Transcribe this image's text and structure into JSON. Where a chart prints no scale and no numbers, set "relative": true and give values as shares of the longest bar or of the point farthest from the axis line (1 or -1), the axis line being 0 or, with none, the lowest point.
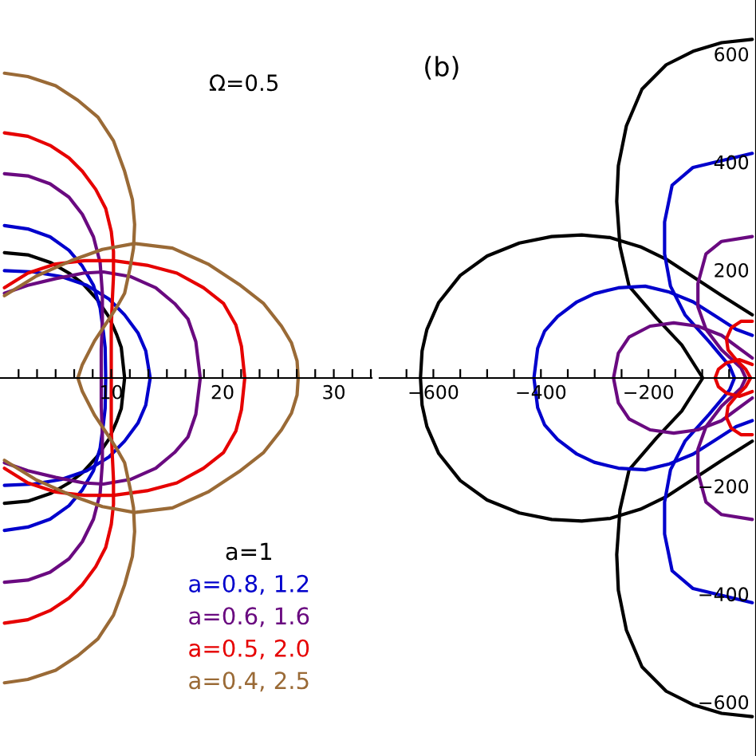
{
  "chart_data": [
    {
      "type": "line",
      "relative": true,
      "xlim": [
        0,
        33.4
      ],
      "xticks": [
        {
          "value": 1.67,
          "label": null
        },
        {
          "value": 3.33,
          "label": null
        },
        {
          "value": 5,
          "label": null
        },
        {
          "value": 6.67,
          "label": null
        },
        {
          "value": 8.33,
          "label": null
        },
        10,
        {
          "value": 11.67,
          "label": null
        },
        {
          "value": 13.33,
          "label": null
        },
        {
          "value": 15,
          "label": null
        },
        {
          "value": 16.67,
          "label": null
        },
        {
          "value": 18.33,
          "label": null
        },
        20,
        {
          "value": 21.67,
          "label": null
        },
        {
          "value": 23.33,
          "label": null
        },
        {
          "value": 25,
          "label": null
        },
        {
          "value": 26.67,
          "label": null
        },
        {
          "value": 28.33,
          "label": null
        },
        30,
        {
          "value": 31.67,
          "label": null
        },
        {
          "value": 33.33,
          "label": null
        }
      ],
      "legend": "bottom right",
      "annotations": [
        "Ω=0.5"
      ],
      "series": [
        {
          "name": "a=1",
          "color": "#000000",
          "x": [
            0.4,
            2.5,
            4.6,
            6.2,
            7.4,
            8.7,
            9.8,
            10.5,
            10.9,
            11.2,
            10.9,
            10.5,
            9.8,
            8.7,
            7.4,
            6.2,
            4.6,
            2.5,
            0.4
          ],
          "values": [
            0.411,
            0.404,
            0.378,
            0.344,
            0.311,
            0.259,
            0.2,
            0.141,
            0.1,
            0,
            -0.1,
            -0.141,
            -0.2,
            -0.259,
            -0.311,
            -0.344,
            -0.378,
            -0.404,
            -0.411
          ]
        },
        {
          "name": "a=0.8, 1.2",
          "color": "#0000cc",
          "x": [
            0.4,
            3.0,
            5.5,
            7.8,
            9.8,
            11.2,
            12.4,
            13.1,
            13.5,
            13.1,
            12.4,
            11.2,
            9.8,
            7.8,
            5.5,
            3.0,
            0.4
          ],
          "values": [
            0.352,
            0.348,
            0.333,
            0.304,
            0.259,
            0.207,
            0.148,
            0.089,
            0,
            -0.089,
            -0.148,
            -0.207,
            -0.259,
            -0.304,
            -0.333,
            -0.348,
            -0.352
          ]
        },
        {
          "color": "#0000cc",
          "x": [
            0.4,
            2.5,
            4.5,
            6.2,
            7.4,
            8.4,
            9.0,
            9.3,
            9.45,
            9.5,
            9.45,
            9.3,
            9.0,
            8.4,
            7.4,
            6.2,
            4.5,
            2.5,
            0.4
          ],
          "values": [
            0.5,
            0.489,
            0.463,
            0.419,
            0.367,
            0.304,
            0.23,
            0.148,
            0.1,
            0,
            -0.1,
            -0.148,
            -0.23,
            -0.304,
            -0.367,
            -0.419,
            -0.463,
            -0.489,
            -0.5
          ]
        },
        {
          "name": "a=0.6, 1.6",
          "color": "#6a0a80",
          "x": [
            0.4,
            2.5,
            5.0,
            7.5,
            9.3,
            11.7,
            14.0,
            15.7,
            16.9,
            17.6,
            18.0,
            17.6,
            16.9,
            15.7,
            14.0,
            11.7,
            9.3,
            7.5,
            5.0,
            2.5,
            0.4
          ],
          "values": [
            0.278,
            0.304,
            0.326,
            0.344,
            0.348,
            0.333,
            0.296,
            0.244,
            0.193,
            0.119,
            0,
            -0.119,
            -0.193,
            -0.244,
            -0.296,
            -0.333,
            -0.348,
            -0.344,
            -0.326,
            -0.304,
            -0.278
          ]
        },
        {
          "color": "#6a0a80",
          "x": [
            0.4,
            2.5,
            4.5,
            6.2,
            7.4,
            8.4,
            9.0,
            9.2,
            9.2,
            9.1,
            9.1,
            9.1,
            9.2,
            9.2,
            9.0,
            8.4,
            7.4,
            6.2,
            4.5,
            2.5,
            0.4
          ],
          "values": [
            0.67,
            0.663,
            0.637,
            0.593,
            0.537,
            0.463,
            0.378,
            0.278,
            0.185,
            0.093,
            0,
            -0.093,
            -0.185,
            -0.278,
            -0.378,
            -0.463,
            -0.537,
            -0.593,
            -0.637,
            -0.663,
            -0.67
          ]
        },
        {
          "name": "a=0.5, 2.0",
          "color": "#e60000",
          "x": [
            0.4,
            2.5,
            5.0,
            7.6,
            10.2,
            13.2,
            15.9,
            18.3,
            20.1,
            21.2,
            21.7,
            22.0,
            21.7,
            21.2,
            20.1,
            18.3,
            15.9,
            13.2,
            10.2,
            7.6,
            5.0,
            2.5,
            0.4
          ],
          "values": [
            0.296,
            0.344,
            0.374,
            0.385,
            0.385,
            0.37,
            0.344,
            0.296,
            0.244,
            0.174,
            0.104,
            0,
            -0.104,
            -0.174,
            -0.244,
            -0.296,
            -0.344,
            -0.37,
            -0.385,
            -0.385,
            -0.374,
            -0.344,
            -0.296
          ]
        },
        {
          "color": "#e60000",
          "x": [
            0.4,
            2.5,
            4.5,
            6.2,
            7.4,
            8.6,
            9.5,
            10.0,
            10.2,
            10.2,
            10.1,
            10.0,
            10.0,
            10.0,
            10.0,
            10.0,
            10.1,
            10.2,
            10.2,
            10.0,
            9.5,
            8.6,
            7.4,
            6.2,
            4.5,
            2.5,
            0.4
          ],
          "values": [
            0.804,
            0.793,
            0.763,
            0.722,
            0.678,
            0.619,
            0.556,
            0.481,
            0.415,
            0.333,
            0.259,
            0.167,
            0.1,
            0,
            -0.1,
            -0.167,
            -0.259,
            -0.333,
            -0.415,
            -0.481,
            -0.556,
            -0.619,
            -0.678,
            -0.722,
            -0.763,
            -0.793,
            -0.804
          ]
        },
        {
          "name": "a=0.4, 2.5",
          "color": "#9a6a36",
          "x": [
            0.4,
            3.2,
            6.4,
            9.2,
            12.1,
            15.5,
            18.7,
            21.5,
            23.7,
            25.3,
            26.2,
            26.7,
            26.8,
            26.7,
            26.2,
            25.3,
            23.7,
            21.5,
            18.7,
            15.5,
            12.1,
            9.2,
            6.4,
            3.2,
            0.4
          ],
          "values": [
            0.27,
            0.333,
            0.385,
            0.422,
            0.441,
            0.426,
            0.374,
            0.307,
            0.244,
            0.17,
            0.115,
            0.056,
            0,
            -0.056,
            -0.115,
            -0.17,
            -0.244,
            -0.307,
            -0.374,
            -0.426,
            -0.441,
            -0.422,
            -0.385,
            -0.333,
            -0.27
          ]
        },
        {
          "color": "#9a6a36",
          "x": [
            0.4,
            2.5,
            5.0,
            7.0,
            8.8,
            10.2,
            11.2,
            11.9,
            12.1,
            12.0,
            11.7,
            11.2,
            10.5,
            9.8,
            8.5,
            7.4,
            7.0,
            7.4,
            8.5,
            9.8,
            10.5,
            11.2,
            11.7,
            12.0,
            12.1,
            11.9,
            11.2,
            10.2,
            8.8,
            7.0,
            5.0,
            2.5,
            0.4
          ],
          "values": [
            1,
            0.989,
            0.959,
            0.911,
            0.856,
            0.778,
            0.678,
            0.585,
            0.504,
            0.426,
            0.363,
            0.278,
            0.233,
            0.193,
            0.122,
            0.044,
            0,
            -0.044,
            -0.122,
            -0.193,
            -0.233,
            -0.278,
            -0.363,
            -0.426,
            -0.504,
            -0.585,
            -0.678,
            -0.778,
            -0.856,
            -0.911,
            -0.959,
            -0.989,
            -1
          ]
        }
      ]
    },
    {
      "type": "line",
      "xlim": [
        -700,
        0
      ],
      "ylim": [
        -700,
        700
      ],
      "xticks": [
        {
          "value": -650,
          "label": null
        },
        {
          "value": -600,
          "label": "−600"
        },
        {
          "value": -550,
          "label": null
        },
        {
          "value": -500,
          "label": null
        },
        {
          "value": -450,
          "label": null
        },
        {
          "value": -400,
          "label": "−400"
        },
        {
          "value": -350,
          "label": null
        },
        {
          "value": -300,
          "label": null
        },
        {
          "value": -250,
          "label": null
        },
        {
          "value": -200,
          "label": "−200"
        },
        {
          "value": -150,
          "label": null
        },
        {
          "value": -100,
          "label": null
        },
        {
          "value": -50,
          "label": null
        }
      ],
      "yticks": [
        {
          "value": -600,
          "label": "−600"
        },
        {
          "value": -400,
          "label": "−400"
        },
        {
          "value": -200,
          "label": "−200"
        },
        200,
        400,
        600
      ],
      "annotations": [
        "(b)"
      ],
      "series": [
        {
          "color": "#000000",
          "x": [
            -7,
            -64,
            -90,
            -167,
            -215,
            -271,
            -324,
            -380,
            -440,
            -500,
            -550,
            -590,
            -612,
            -621,
            -624,
            -621,
            -612,
            -590,
            -550,
            -500,
            -440,
            -380,
            -324,
            -271,
            -215,
            -167,
            -90,
            -64,
            -7
          ],
          "values": [
            117,
            153,
            170,
            220,
            243,
            260,
            265,
            262,
            250,
            226,
            190,
            140,
            90,
            50,
            0,
            -50,
            -90,
            -140,
            -190,
            -226,
            -250,
            -262,
            -265,
            -260,
            -243,
            -220,
            -170,
            -153,
            -117
          ]
        },
        {
          "color": "#000000",
          "x": [
            -7,
            -64,
            -117,
            -167,
            -212,
            -241,
            -256,
            -259,
            -253,
            -236,
            -185,
            -138,
            -99,
            -138,
            -185,
            -236,
            -253,
            -259,
            -256,
            -241,
            -212,
            -167,
            -117,
            -64,
            -7
          ],
          "values": [
            627,
            621,
            605,
            580,
            535,
            467,
            393,
            327,
            244,
            170,
            111,
            61,
            0,
            -61,
            -111,
            -170,
            -244,
            -327,
            -393,
            -467,
            -535,
            -580,
            -605,
            -621,
            -627
          ]
        },
        {
          "color": "#0000cc",
          "x": [
            -7,
            -37,
            -79,
            -117,
            -161,
            -206,
            -256,
            -301,
            -333,
            -369,
            -393,
            -406,
            -413,
            -406,
            -393,
            -369,
            -333,
            -301,
            -256,
            -206,
            -161,
            -117,
            -79,
            -37,
            -7
          ],
          "values": [
            79,
            90,
            117,
            141,
            159,
            170,
            167,
            156,
            141,
            114,
            87,
            55,
            0,
            -55,
            -87,
            -114,
            -141,
            -156,
            -167,
            -170,
            -159,
            -141,
            -117,
            -90,
            -79
          ]
        },
        {
          "color": "#0000cc",
          "x": [
            -7,
            -117,
            -156,
            -170,
            -170,
            -159,
            -132,
            -87,
            -49,
            -40,
            -49,
            -87,
            -132,
            -159,
            -170,
            -170,
            -156,
            -117,
            -7
          ],
          "values": [
            416,
            390,
            357,
            289,
            230,
            170,
            117,
            67,
            22,
            0,
            -22,
            -67,
            -117,
            -170,
            -230,
            -289,
            -357,
            -390,
            -416
          ]
        },
        {
          "color": "#6a0a80",
          "x": [
            -7,
            -64,
            -108,
            -153,
            -197,
            -236,
            -256,
            -265,
            -256,
            -236,
            -197,
            -153,
            -108,
            -64,
            -7
          ],
          "values": [
            37,
            79,
            96,
            102,
            96,
            76,
            46,
            0,
            -46,
            -76,
            -96,
            -102,
            -96,
            -79,
            -37
          ]
        },
        {
          "color": "#6a0a80",
          "x": [
            -7,
            -64,
            -93,
            -108,
            -108,
            -93,
            -64,
            -28,
            -19,
            -28,
            -64,
            -93,
            -108,
            -108,
            -93,
            -64,
            -7
          ],
          "values": [
            262,
            253,
            230,
            175,
            132,
            90,
            52,
            19,
            0,
            -19,
            -52,
            -90,
            -132,
            -175,
            -230,
            -253,
            -262
          ]
        },
        {
          "color": "#e60000",
          "x": [
            -7,
            -31,
            -55,
            -70,
            -76,
            -70,
            -55,
            -31,
            -7
          ],
          "values": [
            25,
            34,
            28,
            16,
            0,
            -16,
            -28,
            -34,
            -25
          ]
        },
        {
          "color": "#e60000",
          "x": [
            -7,
            -28,
            -46,
            -55,
            -52,
            -37,
            -19,
            -10,
            -19,
            -37,
            -52,
            -55,
            -46,
            -28,
            -7
          ],
          "values": [
            105,
            105,
            93,
            73,
            52,
            34,
            16,
            0,
            -16,
            -34,
            -52,
            -73,
            -93,
            -105,
            -105
          ]
        }
      ]
    }
  ]
}
